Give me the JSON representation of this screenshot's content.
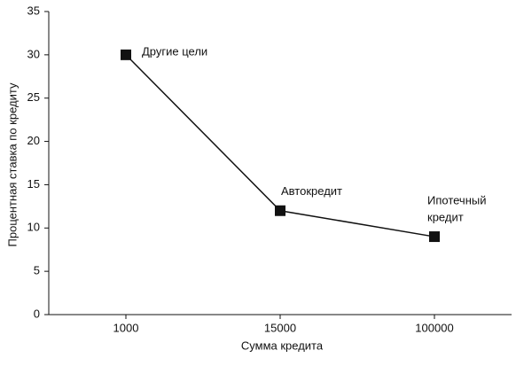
{
  "chart_data": {
    "type": "line",
    "x_label": "Сумма кредита",
    "y_label": "Процентная ставка по кредиту",
    "categories": [
      "1000",
      "15000",
      "100000"
    ],
    "series": [
      {
        "color": "#111111",
        "values": [
          30,
          12,
          9
        ],
        "point_labels": [
          "Другие цели",
          "Автокредит",
          [
            "Ипотечный",
            "кредит"
          ]
        ]
      }
    ],
    "ylim": [
      0,
      35
    ],
    "yticks": [
      0,
      5,
      10,
      15,
      20,
      25,
      30,
      35
    ],
    "grid": false
  }
}
